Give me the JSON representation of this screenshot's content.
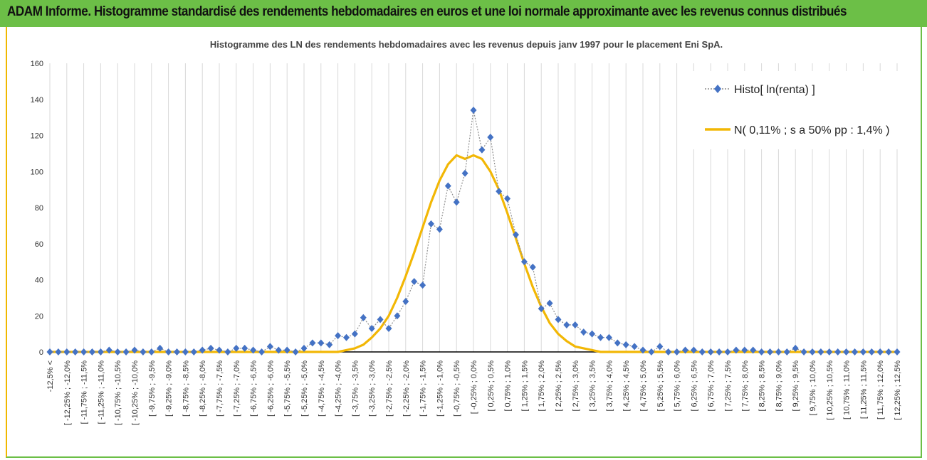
{
  "banner": {
    "title": "ADAM Informe. Histogramme standardisé des rendements hebdomadaires en euros et une loi normale approximante avec les revenus connus distribués"
  },
  "colors": {
    "banner_green": "#6cbf47",
    "accent_yellow": "#f0b800",
    "histo_blue": "#4472c4",
    "normal_yellow": "#f2b705"
  },
  "chart_data": {
    "type": "line",
    "title": "Histogramme des LN des rendements hebdomadaires avec les revenus depuis janv 1997 pour le placement Eni SpA.",
    "xlabel": "",
    "ylabel": "",
    "ylim": [
      0,
      160
    ],
    "yticks": [
      0,
      20,
      40,
      60,
      80,
      100,
      120,
      140,
      160
    ],
    "grid": "vertical",
    "legend_position": "top-right",
    "categories": [
      "-12,5% <",
      "[ -12,25% ; -12,0%",
      "[ -11,75% ; -11,5%",
      "[ -11,25% ; -11,0%",
      "[ -10,75% ; -10,5%",
      "[ -10,25% ; -10,0%",
      "[ -9,75% ; -9,5%",
      "[ -9,25% ; -9,0%",
      "[ -8,75% ; -8,5%",
      "[ -8,25% ; -8,0%",
      "[ -7,75% ; -7,5%",
      "[ -7,25% ; -7,0%",
      "[ -6,75% ; -6,5%",
      "[ -6,25% ; -6,0%",
      "[ -5,75% ; -5,5%",
      "[ -5,25% ; -5,0%",
      "[ -4,75% ; -4,5%",
      "[ -4,25% ; -4,0%",
      "[ -3,75% ; -3,5%",
      "[ -3,25% ; -3,0%",
      "[ -2,75% ; -2,5%",
      "[ -2,25% ; -2,0%",
      "[ -1,75% ; -1,5%",
      "[ -1,25% ; -1,0%",
      "[ -0,75% ; -0,5%",
      "[ -0,25% ; 0,0%",
      "[ 0,25% ; 0,5%",
      "[ 0,75% ; 1,0%",
      "[ 1,25% ; 1,5%",
      "[ 1,75% ; 2,0%",
      "[ 2,25% ; 2,5%",
      "[ 2,75% ; 3,0%",
      "[ 3,25% ; 3,5%",
      "[ 3,75% ; 4,0%",
      "[ 4,25% ; 4,5%",
      "[ 4,75% ; 5,0%",
      "[ 5,25% ; 5,5%",
      "[ 5,75% ; 6,0%",
      "[ 6,25% ; 6,5%",
      "[ 6,75% ; 7,0%",
      "[ 7,25% ; 7,5%",
      "[ 7,75% ; 8,0%",
      "[ 8,25% ; 8,5%",
      "[ 8,75% ; 9,0%",
      "[ 9,25% ; 9,5%",
      "[ 9,75% ; 10,0%",
      "[ 10,25% ; 10,5%",
      "[ 10,75% ; 11,0%",
      "[ 11,25% ; 11,5%",
      "[ 11,75% ; 12,0%",
      "[ 12,25% ; 12,5%"
    ],
    "x": [
      -12.5,
      -12.25,
      -12.0,
      -11.75,
      -11.5,
      -11.25,
      -11.0,
      -10.75,
      -10.5,
      -10.25,
      -10.0,
      -9.75,
      -9.5,
      -9.25,
      -9.0,
      -8.75,
      -8.5,
      -8.25,
      -8.0,
      -7.75,
      -7.5,
      -7.25,
      -7.0,
      -6.75,
      -6.5,
      -6.25,
      -6.0,
      -5.75,
      -5.5,
      -5.25,
      -5.0,
      -4.75,
      -4.5,
      -4.25,
      -4.0,
      -3.75,
      -3.5,
      -3.25,
      -3.0,
      -2.75,
      -2.5,
      -2.25,
      -2.0,
      -1.75,
      -1.5,
      -1.25,
      -1.0,
      -0.75,
      -0.5,
      -0.25,
      0.0,
      0.25,
      0.5,
      0.75,
      1.0,
      1.25,
      1.5,
      1.75,
      2.0,
      2.25,
      2.5,
      2.75,
      3.0,
      3.25,
      3.5,
      3.75,
      4.0,
      4.25,
      4.5,
      4.75,
      5.0,
      5.25,
      5.5,
      5.75,
      6.0,
      6.25,
      6.5,
      6.75,
      7.0,
      7.25,
      7.5,
      7.75,
      8.0,
      8.25,
      8.5,
      8.75,
      9.0,
      9.25,
      9.5,
      9.75,
      10.0,
      10.25,
      10.5,
      10.75,
      11.0,
      11.25,
      11.5,
      11.75,
      12.0,
      12.25,
      12.5
    ],
    "series": [
      {
        "name": "Histo[ ln(renta) ]",
        "style": "dotted line with diamond markers",
        "values": [
          0,
          0,
          0,
          0,
          0,
          0,
          0,
          1,
          0,
          0,
          1,
          0,
          0,
          2,
          0,
          0,
          0,
          0,
          1,
          2,
          1,
          0,
          2,
          2,
          1,
          0,
          3,
          1,
          1,
          0,
          2,
          5,
          5,
          4,
          9,
          8,
          10,
          19,
          13,
          18,
          13,
          20,
          28,
          39,
          37,
          71,
          68,
          92,
          83,
          99,
          134,
          112,
          119,
          89,
          85,
          65,
          50,
          47,
          24,
          27,
          18,
          15,
          15,
          11,
          10,
          8,
          8,
          5,
          4,
          3,
          1,
          0,
          3,
          0,
          0,
          1,
          1,
          0,
          0,
          0,
          0,
          1,
          1,
          1,
          0,
          0,
          0,
          0,
          2,
          0,
          0,
          0,
          0,
          0,
          0,
          0,
          0,
          0,
          0,
          0,
          0
        ]
      },
      {
        "name": "N( 0,11% ; s a 50% pp : 1,4% )",
        "style": "solid line",
        "values": [
          0,
          0,
          0,
          0,
          0,
          0,
          0,
          0,
          0,
          0,
          0,
          0,
          0,
          0,
          0,
          0,
          0,
          0,
          0,
          0,
          0,
          0,
          0,
          0,
          0,
          0,
          0,
          0,
          0,
          0,
          0,
          0,
          0,
          0,
          0,
          1,
          2,
          4,
          8,
          13,
          20,
          30,
          42,
          55,
          69,
          83,
          95,
          104,
          109,
          107,
          109,
          107,
          100,
          90,
          77,
          63,
          49,
          36,
          25,
          16,
          10,
          6,
          3,
          2,
          1,
          0,
          0,
          0,
          0,
          0,
          0,
          0,
          0,
          0,
          0,
          0,
          0,
          0,
          0,
          0,
          0,
          0,
          0,
          0,
          0,
          0,
          0,
          0,
          0,
          0,
          0,
          0,
          0,
          0,
          0,
          0,
          0,
          0,
          0,
          0,
          0
        ]
      }
    ]
  }
}
